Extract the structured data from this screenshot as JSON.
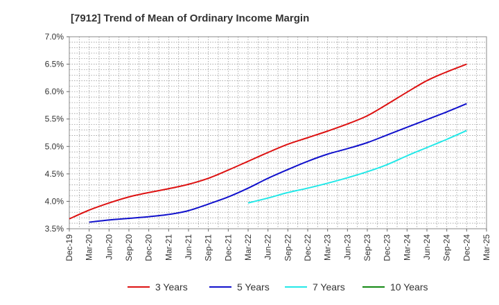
{
  "chart_data": {
    "type": "line",
    "title": "[7912]  Trend of Mean of Ordinary Income Margin",
    "xlabel": "",
    "ylabel": "",
    "ylim": [
      3.5,
      7.0
    ],
    "y_ticks": [
      3.5,
      4.0,
      4.5,
      5.0,
      5.5,
      6.0,
      6.5,
      7.0
    ],
    "y_tick_labels": [
      "3.5%",
      "4.0%",
      "4.5%",
      "5.0%",
      "5.5%",
      "6.0%",
      "6.5%",
      "7.0%"
    ],
    "categories": [
      "Dec-19",
      "Mar-20",
      "Jun-20",
      "Sep-20",
      "Dec-20",
      "Mar-21",
      "Jun-21",
      "Sep-21",
      "Dec-21",
      "Mar-22",
      "Jun-22",
      "Sep-22",
      "Dec-22",
      "Mar-23",
      "Jun-23",
      "Sep-23",
      "Dec-23",
      "Mar-24",
      "Jun-24",
      "Sep-24",
      "Dec-24",
      "Mar-25"
    ],
    "grid": true,
    "legend_position": "bottom",
    "series": [
      {
        "name": "3 Years",
        "color": "#dd1111",
        "values": [
          3.68,
          3.84,
          3.97,
          4.08,
          4.16,
          4.23,
          4.31,
          4.42,
          4.57,
          4.73,
          4.89,
          5.04,
          5.16,
          5.28,
          5.41,
          5.56,
          5.77,
          5.99,
          6.2,
          6.36,
          6.5,
          null
        ]
      },
      {
        "name": "5 Years",
        "color": "#1010cc",
        "values": [
          null,
          3.62,
          3.66,
          3.69,
          3.72,
          3.76,
          3.83,
          3.95,
          4.08,
          4.24,
          4.42,
          4.58,
          4.73,
          4.86,
          4.96,
          5.07,
          5.21,
          5.35,
          5.49,
          5.63,
          5.78,
          null
        ]
      },
      {
        "name": "7 Years",
        "color": "#22e8e8",
        "values": [
          null,
          null,
          null,
          null,
          null,
          null,
          null,
          null,
          null,
          3.97,
          4.06,
          4.16,
          4.24,
          4.33,
          4.43,
          4.54,
          4.67,
          4.83,
          4.98,
          5.13,
          5.29,
          null
        ]
      },
      {
        "name": "10 Years",
        "color": "#118811",
        "values": [
          null,
          null,
          null,
          null,
          null,
          null,
          null,
          null,
          null,
          null,
          null,
          null,
          null,
          null,
          null,
          null,
          null,
          null,
          null,
          null,
          null,
          null
        ]
      }
    ]
  }
}
